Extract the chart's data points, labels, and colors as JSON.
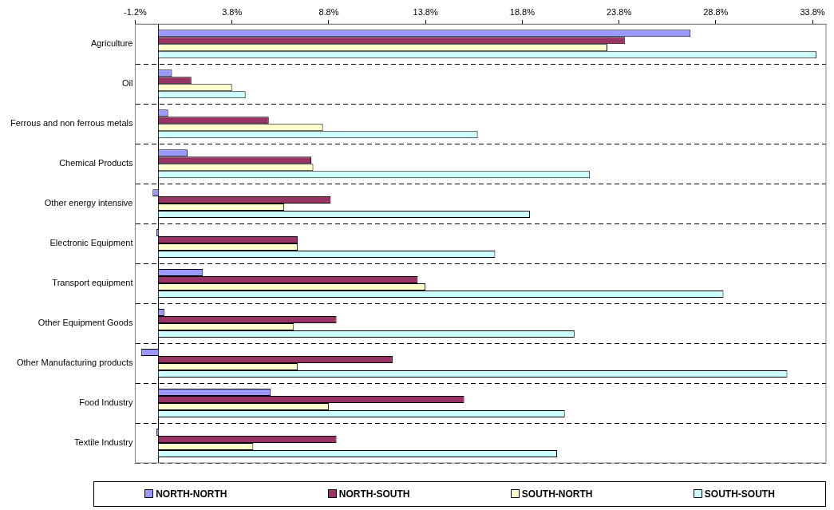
{
  "chart_data": {
    "type": "bar",
    "orientation": "horizontal",
    "categories": [
      "Agriculture",
      "Oil",
      "Ferrous and non ferrous metals",
      "Chemical Products",
      "Other energy intensive",
      "Electronic Equipment",
      "Transport equipment",
      "Other Equipment Goods",
      "Other Manufacturing products",
      "Food Industry",
      "Textile Industry"
    ],
    "series": [
      {
        "name": "NORTH-NORTH",
        "color": "#9999ff",
        "values": [
          27.5,
          0.7,
          0.5,
          1.5,
          -0.3,
          -0.1,
          2.3,
          0.3,
          -0.9,
          5.8,
          -0.1
        ]
      },
      {
        "name": "NORTH-SOUTH",
        "color": "#993366",
        "values": [
          24.1,
          1.7,
          5.7,
          7.9,
          8.9,
          7.2,
          13.4,
          9.2,
          12.1,
          15.8,
          9.2
        ]
      },
      {
        "name": "SOUTH-NORTH",
        "color": "#ffffcc",
        "values": [
          23.2,
          3.8,
          8.5,
          8.0,
          6.5,
          7.2,
          13.8,
          7.0,
          7.2,
          8.8,
          4.9
        ]
      },
      {
        "name": "SOUTH-SOUTH",
        "color": "#ccffff",
        "values": [
          34.0,
          4.5,
          16.5,
          22.3,
          19.2,
          17.4,
          29.2,
          21.5,
          32.5,
          21.0,
          20.6
        ]
      }
    ],
    "xlim": [
      -1.2,
      34.5
    ],
    "xticks": [
      {
        "value": -1.2,
        "label": "-1.2%"
      },
      {
        "value": 3.8,
        "label": "3.8%"
      },
      {
        "value": 8.8,
        "label": "8.8%"
      },
      {
        "value": 13.8,
        "label": "13.8%"
      },
      {
        "value": 18.8,
        "label": "18.8%"
      },
      {
        "value": 23.8,
        "label": "23.8%"
      },
      {
        "value": 28.8,
        "label": "28.8%"
      },
      {
        "value": 33.8,
        "label": "33.8%"
      }
    ],
    "grid": "y",
    "legend": "bottom"
  }
}
